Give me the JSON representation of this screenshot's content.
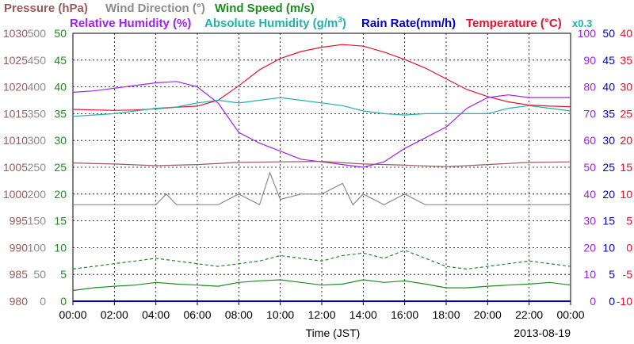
{
  "chart_data": {
    "type": "line",
    "date": "2013-08-19",
    "xlabel": "Time (JST)",
    "x_ticks": [
      "00:00",
      "02:00",
      "04:00",
      "06:00",
      "08:00",
      "10:00",
      "12:00",
      "14:00",
      "16:00",
      "18:00",
      "20:00",
      "22:00",
      "00:00"
    ],
    "legend_row1": [
      {
        "text": "Pressure (hPa)",
        "color": "#9b5a5a"
      },
      {
        "text": "Wind Direction (°)",
        "color": "#8c8c8c"
      },
      {
        "text": "Wind Speed (m/s)",
        "color": "#1e8c1e"
      }
    ],
    "legend_row2": [
      {
        "text": "Relative Humidity (%)",
        "color": "#a020f0"
      },
      {
        "text": "Absolute Humidity (g/m",
        "sup": "3",
        "suffix": ")",
        "color": "#20b2aa"
      },
      {
        "text": "Rain Rate(mm/h)",
        "color": "#0000cc"
      },
      {
        "text": "Temperature (°C)",
        "color": "#e8102c"
      },
      {
        "text": "x0.3",
        "color": "#20b2aa"
      }
    ],
    "axes": {
      "pressure": {
        "color": "#9b5a5a",
        "ticks": [
          "980",
          "985",
          "990",
          "995",
          "1000",
          "1005",
          "1010",
          "1015",
          "1020",
          "1025",
          "1030"
        ],
        "range": [
          980,
          1030
        ]
      },
      "wind_dir": {
        "color": "#8c8c8c",
        "ticks": [
          "0",
          "50",
          "100",
          "150",
          "200",
          "250",
          "300",
          "350",
          "400",
          "450",
          "500"
        ],
        "range": [
          0,
          500
        ]
      },
      "wind_speed": {
        "color": "#1e8c1e",
        "ticks": [
          "0",
          "5",
          "10",
          "15",
          "20",
          "25",
          "30",
          "35",
          "40",
          "45",
          "50"
        ],
        "range": [
          0,
          50
        ]
      },
      "humidity": {
        "color": "#a020f0",
        "ticks": [
          "0",
          "10",
          "20",
          "30",
          "40",
          "50",
          "60",
          "70",
          "80",
          "90",
          "100"
        ],
        "range": [
          0,
          100
        ]
      },
      "rain": {
        "color": "#0000cc",
        "ticks": [
          "0",
          "5",
          "10",
          "15",
          "20",
          "25",
          "30",
          "35",
          "40",
          "45",
          "50"
        ],
        "range": [
          0,
          50
        ]
      },
      "temperature": {
        "color": "#e8102c",
        "ticks": [
          "-10",
          "-5",
          "0",
          "5",
          "10",
          "15",
          "20",
          "25",
          "30",
          "35",
          "40"
        ],
        "range": [
          -10,
          40
        ]
      }
    },
    "series": [
      {
        "name": "Temperature",
        "color": "#e8102c",
        "axis": "temperature",
        "x": [
          0,
          1,
          2,
          3,
          4,
          5,
          6,
          7,
          8,
          9,
          10,
          11,
          12,
          13,
          14,
          15,
          16,
          17,
          18,
          19,
          20,
          21,
          22,
          23,
          24
        ],
        "y": [
          25.8,
          25.7,
          25.6,
          25.7,
          25.9,
          26.2,
          26.4,
          27.5,
          30.2,
          33.2,
          35.3,
          36.6,
          37.4,
          37.9,
          37.6,
          36.5,
          35.1,
          33.5,
          31.5,
          29.5,
          28.2,
          27.2,
          26.6,
          26.4,
          26.3
        ]
      },
      {
        "name": "Relative Humidity",
        "color": "#a020f0",
        "axis": "humidity",
        "x": [
          0,
          1,
          2,
          3,
          4,
          5,
          6,
          7,
          8,
          9,
          10,
          11,
          12,
          13,
          14,
          15,
          16,
          17,
          18,
          19,
          20,
          21,
          22,
          23,
          24
        ],
        "y": [
          78,
          78.5,
          79.5,
          80.5,
          81.5,
          82,
          80,
          74,
          63,
          59,
          56,
          53,
          52,
          51,
          50,
          52,
          57,
          61,
          65,
          72,
          76,
          77,
          76,
          76,
          76
        ]
      },
      {
        "name": "Absolute Humidity x0.3",
        "color": "#20b2aa",
        "axis": "humidity",
        "x": [
          0,
          1,
          2,
          3,
          4,
          5,
          6,
          7,
          8,
          9,
          10,
          11,
          12,
          13,
          14,
          15,
          16,
          17,
          18,
          19,
          20,
          21,
          22,
          23,
          24
        ],
        "y": [
          69,
          69.5,
          70,
          71,
          72,
          72.5,
          74,
          75,
          74,
          75,
          76,
          75,
          74,
          73,
          71,
          70,
          69.5,
          70,
          70,
          70,
          70,
          72,
          73,
          72,
          71
        ]
      },
      {
        "name": "Pressure",
        "color": "#9b5a5a",
        "axis": "pressure",
        "x": [
          0,
          2,
          4,
          6,
          8,
          10,
          12,
          14,
          16,
          18,
          20,
          22,
          24
        ],
        "y": [
          1005.8,
          1005.6,
          1005.3,
          1005.5,
          1005.9,
          1006.0,
          1006.1,
          1005.6,
          1005.4,
          1005.1,
          1005.5,
          1005.9,
          1006.0
        ]
      },
      {
        "name": "Wind Direction",
        "color": "#8c8c8c",
        "axis": "wind_dir",
        "x": [
          0,
          0.5,
          1,
          2,
          3,
          4,
          4.5,
          5,
          6,
          7,
          8,
          9,
          9.5,
          10,
          11,
          12,
          13,
          13.5,
          14,
          15,
          16,
          17,
          18,
          19,
          20,
          21,
          22,
          23,
          24
        ],
        "y": [
          180,
          180,
          180,
          180,
          180,
          180,
          200,
          180,
          180,
          180,
          200,
          180,
          240,
          190,
          200,
          200,
          220,
          180,
          200,
          180,
          200,
          180,
          180,
          180,
          180,
          180,
          180,
          180,
          180
        ]
      },
      {
        "name": "Wind Speed mean",
        "color": "#1e8c1e",
        "axis": "wind_speed",
        "x": [
          0,
          1,
          2,
          3,
          4,
          5,
          6,
          7,
          8,
          9,
          10,
          11,
          12,
          13,
          14,
          15,
          16,
          17,
          18,
          19,
          20,
          21,
          22,
          23,
          24
        ],
        "y": [
          2.0,
          2.5,
          2.8,
          3.0,
          3.5,
          3.2,
          3.0,
          2.8,
          3.5,
          3.8,
          4.0,
          3.5,
          3.0,
          3.2,
          4.0,
          3.5,
          3.8,
          3.2,
          2.5,
          2.5,
          2.8,
          3.0,
          3.2,
          3.5,
          3.0
        ]
      },
      {
        "name": "Wind Speed gust",
        "color": "#1e8c1e",
        "axis": "wind_speed",
        "x": [
          0,
          1,
          2,
          3,
          4,
          5,
          6,
          7,
          8,
          9,
          10,
          11,
          12,
          13,
          14,
          15,
          16,
          17,
          18,
          19,
          20,
          21,
          22,
          23,
          24
        ],
        "y": [
          6.0,
          6.5,
          7.0,
          7.5,
          8.0,
          7.5,
          7.0,
          6.5,
          7.0,
          7.5,
          8.5,
          8.0,
          7.5,
          8.5,
          9.0,
          8.0,
          9.5,
          8.0,
          6.5,
          6.0,
          6.5,
          7.0,
          7.5,
          7.0,
          6.5
        ]
      },
      {
        "name": "Rain Rate",
        "color": "#0000cc",
        "axis": "rain",
        "x": [
          0,
          24
        ],
        "y": [
          0,
          0
        ]
      }
    ]
  }
}
